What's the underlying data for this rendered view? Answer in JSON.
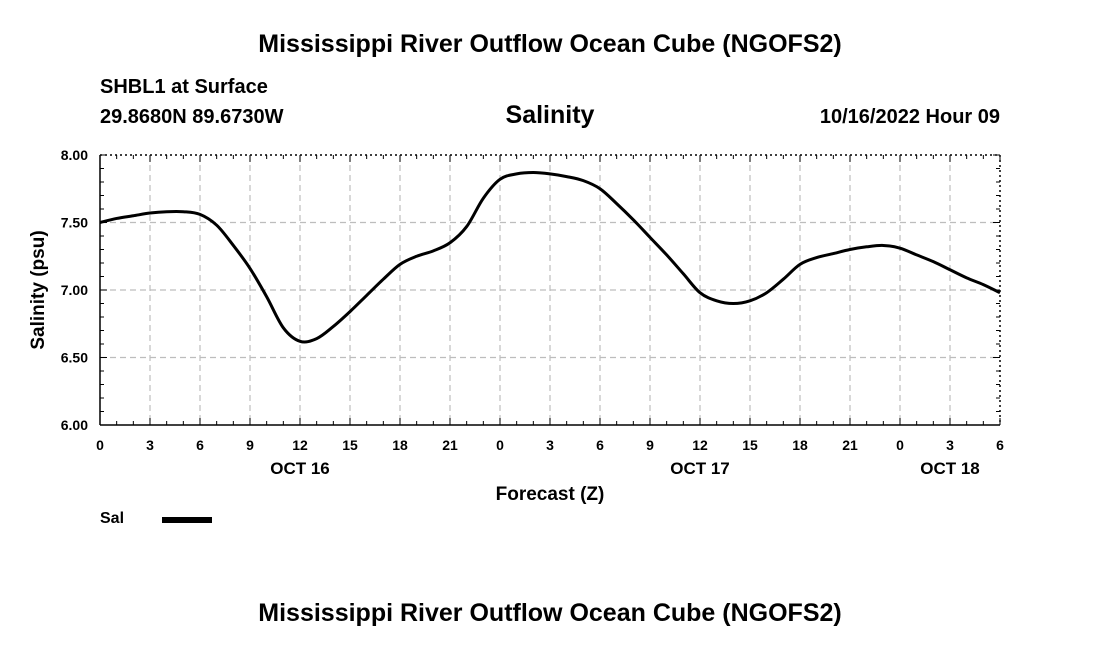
{
  "header": {
    "title": "Mississippi River Outflow Ocean Cube (NGOFS2)",
    "station": "SHBL1 at Surface",
    "coords": "29.8680N  89.6730W",
    "plot_title": "Salinity",
    "datetime": "10/16/2022 Hour 09"
  },
  "footer": {
    "title": "Mississippi River Outflow Ocean Cube (NGOFS2)"
  },
  "legend": {
    "label": "Sal",
    "color": "#000000"
  },
  "chart_data": {
    "type": "line",
    "title": "Salinity",
    "xlabel": "Forecast (Z)",
    "ylabel": "Salinity (psu)",
    "xlim": [
      0,
      54
    ],
    "ylim": [
      6.0,
      8.0
    ],
    "grid": true,
    "yticks": [
      "6.00",
      "6.50",
      "7.00",
      "7.50",
      "8.00"
    ],
    "yticks_values": [
      6.0,
      6.5,
      7.0,
      7.5,
      8.0
    ],
    "xticks_values": [
      0,
      3,
      6,
      9,
      12,
      15,
      18,
      21,
      24,
      27,
      30,
      33,
      36,
      39,
      42,
      45,
      48,
      51,
      54
    ],
    "xticks": [
      "0",
      "3",
      "6",
      "9",
      "12",
      "15",
      "18",
      "21",
      "0",
      "3",
      "6",
      "9",
      "12",
      "15",
      "18",
      "21",
      "0",
      "3",
      "6"
    ],
    "day_labels": [
      {
        "label": "OCT 16",
        "x": 12
      },
      {
        "label": "OCT 17",
        "x": 36
      },
      {
        "label": "OCT 18",
        "x": 51
      }
    ],
    "series": [
      {
        "name": "Sal",
        "x": [
          0,
          1,
          2,
          3,
          4,
          5,
          6,
          7,
          8,
          9,
          10,
          11,
          12,
          13,
          14,
          15,
          16,
          17,
          18,
          19,
          20,
          21,
          22,
          23,
          24,
          25,
          26,
          27,
          28,
          29,
          30,
          31,
          32,
          33,
          34,
          35,
          36,
          37,
          38,
          39,
          40,
          41,
          42,
          43,
          44,
          45,
          46,
          47,
          48,
          49,
          50,
          51,
          52,
          53,
          54
        ],
        "values": [
          7.5,
          7.53,
          7.55,
          7.57,
          7.58,
          7.58,
          7.56,
          7.48,
          7.33,
          7.16,
          6.95,
          6.72,
          6.62,
          6.64,
          6.73,
          6.84,
          6.96,
          7.08,
          7.19,
          7.25,
          7.29,
          7.35,
          7.47,
          7.68,
          7.82,
          7.86,
          7.87,
          7.86,
          7.84,
          7.81,
          7.75,
          7.64,
          7.52,
          7.39,
          7.26,
          7.12,
          6.98,
          6.92,
          6.9,
          6.92,
          6.98,
          7.08,
          7.19,
          7.24,
          7.27,
          7.3,
          7.32,
          7.33,
          7.31,
          7.26,
          7.21,
          7.15,
          7.09,
          7.04,
          6.98
        ]
      }
    ]
  }
}
